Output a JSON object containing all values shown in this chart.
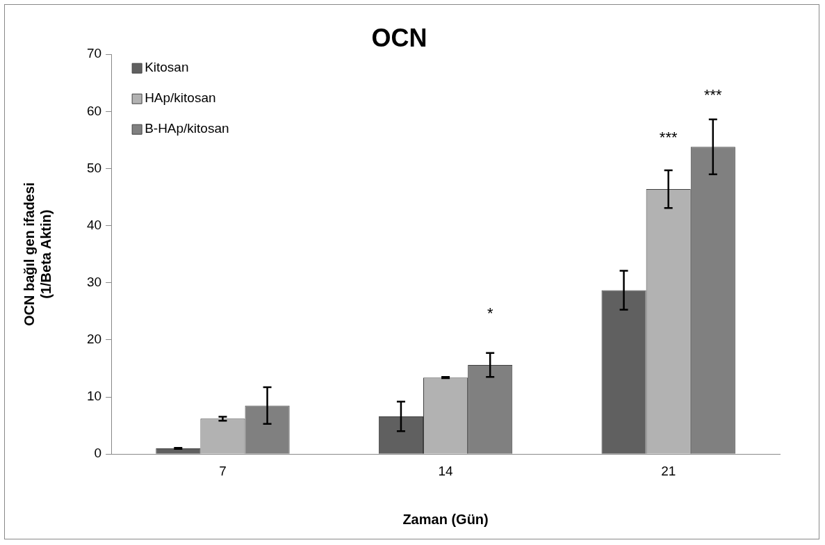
{
  "chart_data": {
    "type": "bar",
    "title": "OCN",
    "xlabel": "Zaman (Gün)",
    "ylabel": "OCN bağıl gen ifadesi\n(1/Beta Aktin)",
    "categories": [
      "7",
      "14",
      "21"
    ],
    "series": [
      {
        "name": "Kitosan",
        "color": "#606060",
        "values": [
          1.0,
          6.6,
          28.7
        ],
        "errors": [
          0.1,
          2.6,
          3.4
        ]
      },
      {
        "name": "HAp/kitosan",
        "color": "#b2b2b2",
        "values": [
          6.2,
          13.4,
          46.4
        ],
        "errors": [
          0.35,
          0.1,
          3.3
        ]
      },
      {
        "name": "B-HAp/kitosan",
        "color": "#808080",
        "values": [
          8.5,
          15.6,
          53.8
        ],
        "errors": [
          3.2,
          2.1,
          4.8
        ]
      }
    ],
    "ylim": [
      0,
      70
    ],
    "yticks": [
      0,
      10,
      20,
      30,
      40,
      50,
      60,
      70
    ],
    "grid": false,
    "legend": "top left",
    "annotations": [
      "*",
      "***",
      "***"
    ]
  }
}
